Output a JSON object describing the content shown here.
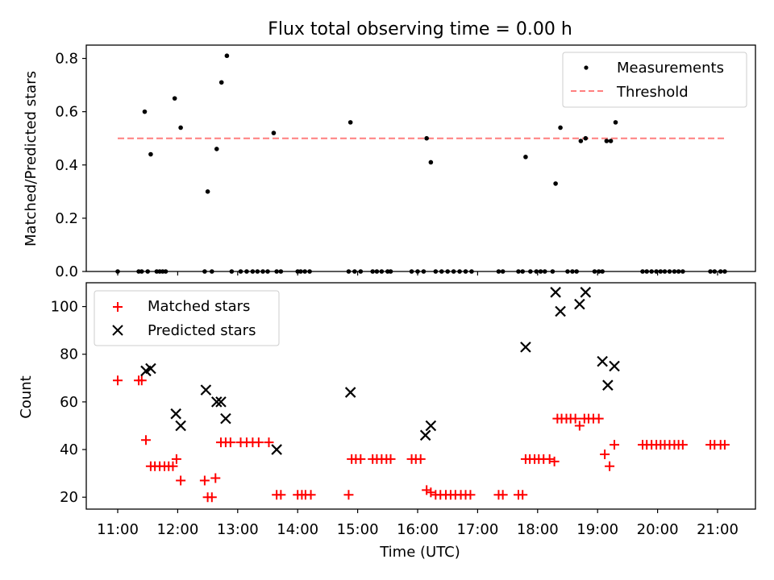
{
  "title": "Flux total observing time = 0.00 h",
  "xlabel": "Time (UTC)",
  "x_ticks": [
    "11:00",
    "12:00",
    "13:00",
    "14:00",
    "15:00",
    "16:00",
    "17:00",
    "18:00",
    "19:00",
    "20:00",
    "21:00"
  ],
  "chart_data": [
    {
      "type": "scatter",
      "ylabel": "Matched/Predicted stars",
      "ylim": [
        0,
        0.85
      ],
      "y_ticks": [
        "0.0",
        "0.2",
        "0.4",
        "0.6",
        "0.8"
      ],
      "legend": {
        "placement": "top-right",
        "entries": [
          "Measurements",
          "Threshold"
        ]
      },
      "threshold": {
        "name": "Threshold",
        "y": 0.5,
        "x_start": 11.0,
        "x_end": 21.15,
        "color": "#ff7f7f"
      },
      "series": [
        {
          "name": "Measurements",
          "color": "#000000",
          "x": [
            11.0,
            11.35,
            11.4,
            11.45,
            11.5,
            11.55,
            11.65,
            11.7,
            11.75,
            11.8,
            11.95,
            12.05,
            12.45,
            12.5,
            12.57,
            12.65,
            12.73,
            12.82,
            12.9,
            13.05,
            13.15,
            13.25,
            13.33,
            13.42,
            13.5,
            13.6,
            13.65,
            13.72,
            14.0,
            14.05,
            14.12,
            14.2,
            14.85,
            14.88,
            14.95,
            15.05,
            15.25,
            15.32,
            15.4,
            15.5,
            15.55,
            15.9,
            16.0,
            16.1,
            16.15,
            16.22,
            16.3,
            16.4,
            16.5,
            16.6,
            16.7,
            16.8,
            16.9,
            17.35,
            17.42,
            17.68,
            17.75,
            17.8,
            17.88,
            17.98,
            18.05,
            18.12,
            18.25,
            18.3,
            18.38,
            18.5,
            18.58,
            18.65,
            18.72,
            18.8,
            18.95,
            19.02,
            19.08,
            19.15,
            19.22,
            19.3,
            19.75,
            19.82,
            19.9,
            19.98,
            20.05,
            20.12,
            20.2,
            20.28,
            20.35,
            20.42,
            20.88,
            20.95,
            21.05,
            21.12
          ],
          "y": [
            0.0,
            0.0,
            0.0,
            0.6,
            0.0,
            0.44,
            0.0,
            0.0,
            0.0,
            0.0,
            0.65,
            0.54,
            0.0,
            0.3,
            0.0,
            0.46,
            0.71,
            0.81,
            0.0,
            0.0,
            0.0,
            0.0,
            0.0,
            0.0,
            0.0,
            0.52,
            0.0,
            0.0,
            0.0,
            0.0,
            0.0,
            0.0,
            0.0,
            0.56,
            0.0,
            0.0,
            0.0,
            0.0,
            0.0,
            0.0,
            0.0,
            0.0,
            0.0,
            0.0,
            0.5,
            0.41,
            0.0,
            0.0,
            0.0,
            0.0,
            0.0,
            0.0,
            0.0,
            0.0,
            0.0,
            0.0,
            0.0,
            0.43,
            0.0,
            0.0,
            0.0,
            0.0,
            0.0,
            0.33,
            0.54,
            0.0,
            0.0,
            0.0,
            0.49,
            0.5,
            0.0,
            0.0,
            0.0,
            0.49,
            0.49,
            0.56,
            0.0,
            0.0,
            0.0,
            0.0,
            0.0,
            0.0,
            0.0,
            0.0,
            0.0,
            0.0,
            0.0,
            0.0,
            0.0,
            0.0
          ]
        }
      ]
    },
    {
      "type": "scatter",
      "ylabel": "Count",
      "ylim": [
        15,
        110
      ],
      "y_ticks": [
        "20",
        "40",
        "60",
        "80",
        "100"
      ],
      "legend": {
        "placement": "top-left",
        "entries": [
          "Matched stars",
          "Predicted stars"
        ]
      },
      "series": [
        {
          "name": "Matched stars",
          "color": "#ff0000",
          "marker": "plus",
          "x": [
            11.0,
            11.35,
            11.4,
            11.47,
            11.55,
            11.62,
            11.7,
            11.78,
            11.85,
            11.92,
            11.98,
            12.05,
            12.45,
            12.5,
            12.57,
            12.63,
            12.72,
            12.8,
            12.88,
            13.05,
            13.15,
            13.25,
            13.35,
            13.52,
            13.65,
            13.72,
            14.0,
            14.07,
            14.13,
            14.22,
            14.85,
            14.9,
            14.97,
            15.05,
            15.25,
            15.32,
            15.4,
            15.48,
            15.55,
            15.9,
            15.97,
            16.05,
            16.15,
            16.22,
            16.3,
            16.38,
            16.47,
            16.55,
            16.63,
            16.72,
            16.8,
            16.88,
            17.35,
            17.42,
            17.68,
            17.75,
            17.8,
            17.87,
            17.95,
            18.02,
            18.1,
            18.2,
            18.28,
            18.33,
            18.4,
            18.48,
            18.55,
            18.63,
            18.7,
            18.78,
            18.85,
            18.93,
            19.02,
            19.12,
            19.2,
            19.28,
            19.75,
            19.82,
            19.9,
            19.98,
            20.05,
            20.12,
            20.2,
            20.28,
            20.35,
            20.42,
            20.88,
            20.95,
            21.05,
            21.12
          ],
          "y": [
            69,
            69,
            69,
            44,
            33,
            33,
            33,
            33,
            33,
            33,
            36,
            27,
            27,
            20,
            20,
            28,
            43,
            43,
            43,
            43,
            43,
            43,
            43,
            43,
            21,
            21,
            21,
            21,
            21,
            21,
            21,
            36,
            36,
            36,
            36,
            36,
            36,
            36,
            36,
            36,
            36,
            36,
            23,
            22,
            21,
            21,
            21,
            21,
            21,
            21,
            21,
            21,
            21,
            21,
            21,
            21,
            36,
            36,
            36,
            36,
            36,
            36,
            35,
            53,
            53,
            53,
            53,
            53,
            50,
            53,
            53,
            53,
            53,
            38,
            33,
            42,
            42,
            42,
            42,
            42,
            42,
            42,
            42,
            42,
            42,
            42,
            42,
            42,
            42,
            42
          ]
        },
        {
          "name": "Predicted stars",
          "color": "#000000",
          "marker": "x",
          "x": [
            11.47,
            11.55,
            11.97,
            12.05,
            12.47,
            12.65,
            12.72,
            12.8,
            13.65,
            14.88,
            16.13,
            16.22,
            17.8,
            18.3,
            18.38,
            18.7,
            18.8,
            19.08,
            19.17,
            19.28
          ],
          "y": [
            73,
            74,
            55,
            50,
            65,
            60,
            60,
            53,
            40,
            64,
            46,
            50,
            83,
            106,
            98,
            101,
            106,
            77,
            67,
            75
          ]
        }
      ]
    }
  ]
}
